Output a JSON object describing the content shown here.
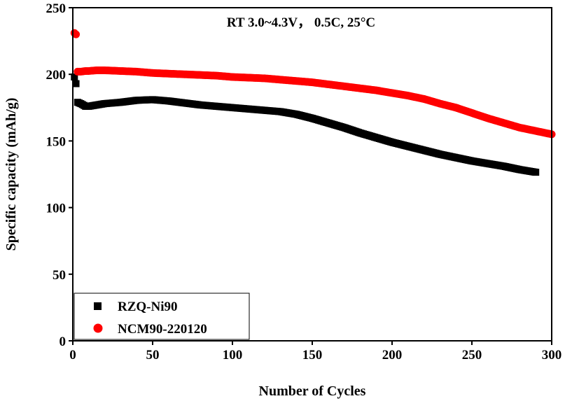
{
  "chart_data": {
    "type": "scatter",
    "annotation": "RT 3.0~4.3V， 0.5C, 25°C",
    "xlabel": "Number of Cycles",
    "ylabel": "Specific capacity (mAh/g)",
    "xlim": [
      0,
      300
    ],
    "ylim": [
      0,
      250
    ],
    "xticks": [
      0,
      50,
      100,
      150,
      200,
      250,
      300
    ],
    "yticks": [
      0,
      50,
      100,
      150,
      200,
      250
    ],
    "grid": false,
    "legend_position": "bottom-left",
    "series": [
      {
        "name": "RZQ-Ni90",
        "color": "#000000",
        "marker": "square",
        "x": [
          1,
          2,
          3,
          5,
          8,
          10,
          15,
          20,
          25,
          30,
          40,
          50,
          60,
          70,
          80,
          90,
          100,
          110,
          120,
          130,
          140,
          150,
          160,
          170,
          180,
          190,
          200,
          210,
          220,
          230,
          240,
          250,
          260,
          270,
          280,
          290
        ],
        "y": [
          198,
          193,
          179,
          178,
          176,
          176,
          177,
          178,
          178.5,
          179,
          180.5,
          181,
          180,
          178.5,
          177,
          176,
          175,
          174,
          173,
          172,
          170,
          167,
          163.5,
          160,
          156,
          152.5,
          149,
          146,
          143,
          140,
          137.5,
          135,
          133,
          131,
          128.5,
          126.5
        ]
      },
      {
        "name": "NCM90-220120",
        "color": "#ff0000",
        "marker": "circle",
        "x": [
          1,
          2,
          3,
          5,
          8,
          10,
          15,
          20,
          30,
          40,
          50,
          60,
          70,
          80,
          90,
          100,
          110,
          120,
          130,
          140,
          150,
          160,
          170,
          180,
          190,
          200,
          210,
          220,
          230,
          240,
          250,
          260,
          270,
          280,
          290,
          300
        ],
        "y": [
          231,
          230,
          202,
          202,
          202.5,
          202.5,
          203,
          203,
          202.5,
          202,
          201,
          200.5,
          200,
          199.5,
          199,
          198,
          197.5,
          197,
          196,
          195,
          194,
          192.5,
          191,
          189.5,
          188,
          186,
          184,
          181.5,
          178,
          175,
          171,
          167,
          163.5,
          160,
          157.5,
          155
        ]
      }
    ]
  }
}
